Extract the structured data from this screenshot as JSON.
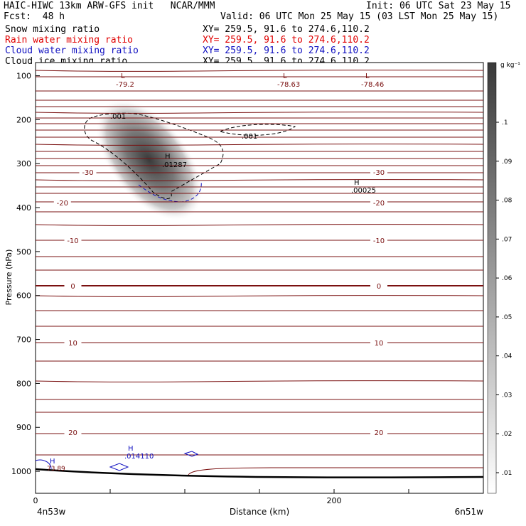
{
  "header": {
    "model_line": "HAIC-HIWC 13km ARW-GFS init   NCAR/MMM",
    "init": "Init: 06 UTC Sat 23 May 15",
    "fcst": "Fcst:  48 h",
    "valid": "Valid: 06 UTC Mon 25 May 15 (03 LST Mon 25 May 15)",
    "fields": [
      {
        "label": "Snow mixing ratio",
        "color": "#000000",
        "xy": "XY= 259.5, 91.6 to 274.6,110.2"
      },
      {
        "label": "Rain water mixing ratio",
        "color": "#e00000",
        "xy": "XY= 259.5, 91.6 to 274.6,110.2"
      },
      {
        "label": "Cloud water mixing ratio",
        "color": "#1010c0",
        "xy": "XY= 259.5, 91.6 to 274.6,110.2"
      },
      {
        "label": "Cloud ice mixing ratio",
        "color": "#000000",
        "xy": "XY= 259.5, 91.6 to 274.6,110.2"
      }
    ]
  },
  "chart_data": {
    "type": "heatmap",
    "title": "",
    "xlabel": "Distance (km)",
    "ylabel": "Pressure (hPa)",
    "x_start_label": "4n53w",
    "x_end_label": "6n51w",
    "xlim": [
      0,
      300
    ],
    "x_ticks": [
      0,
      200
    ],
    "ylim": [
      1050,
      70
    ],
    "y_ticks": [
      100,
      200,
      300,
      400,
      500,
      600,
      700,
      800,
      900,
      1000
    ],
    "colorbar": {
      "unit": "g kg⁻¹",
      "levels": [
        ".01",
        ".02",
        ".03",
        ".04",
        ".05",
        ".06",
        ".07",
        ".08",
        ".09",
        ".1"
      ]
    },
    "isotherms": [
      {
        "label": "-30",
        "positions": [
          35,
          230
        ]
      },
      {
        "label": "-20",
        "positions": [
          18,
          230
        ]
      },
      {
        "label": "-10",
        "positions": [
          25,
          230
        ]
      },
      {
        "label": "0",
        "positions": [
          25,
          230
        ]
      },
      {
        "label": "10",
        "positions": [
          25,
          230
        ]
      },
      {
        "label": "20",
        "positions": [
          25,
          230
        ]
      }
    ],
    "extrema": [
      {
        "type": "L",
        "value": "-79.2"
      },
      {
        "type": "L",
        "value": "-78.63"
      },
      {
        "type": "L",
        "value": "-78.46"
      },
      {
        "type": "H",
        "value": ".01287"
      },
      {
        "type": "H",
        "value": ".00025"
      },
      {
        "type": "H",
        "value": ".014110"
      },
      {
        "type": "H",
        "value": "73.89"
      }
    ],
    "contour_labels": [
      ".001",
      ".001"
    ],
    "ground_color": "#000000",
    "isotherm_color": "#7a1010"
  }
}
